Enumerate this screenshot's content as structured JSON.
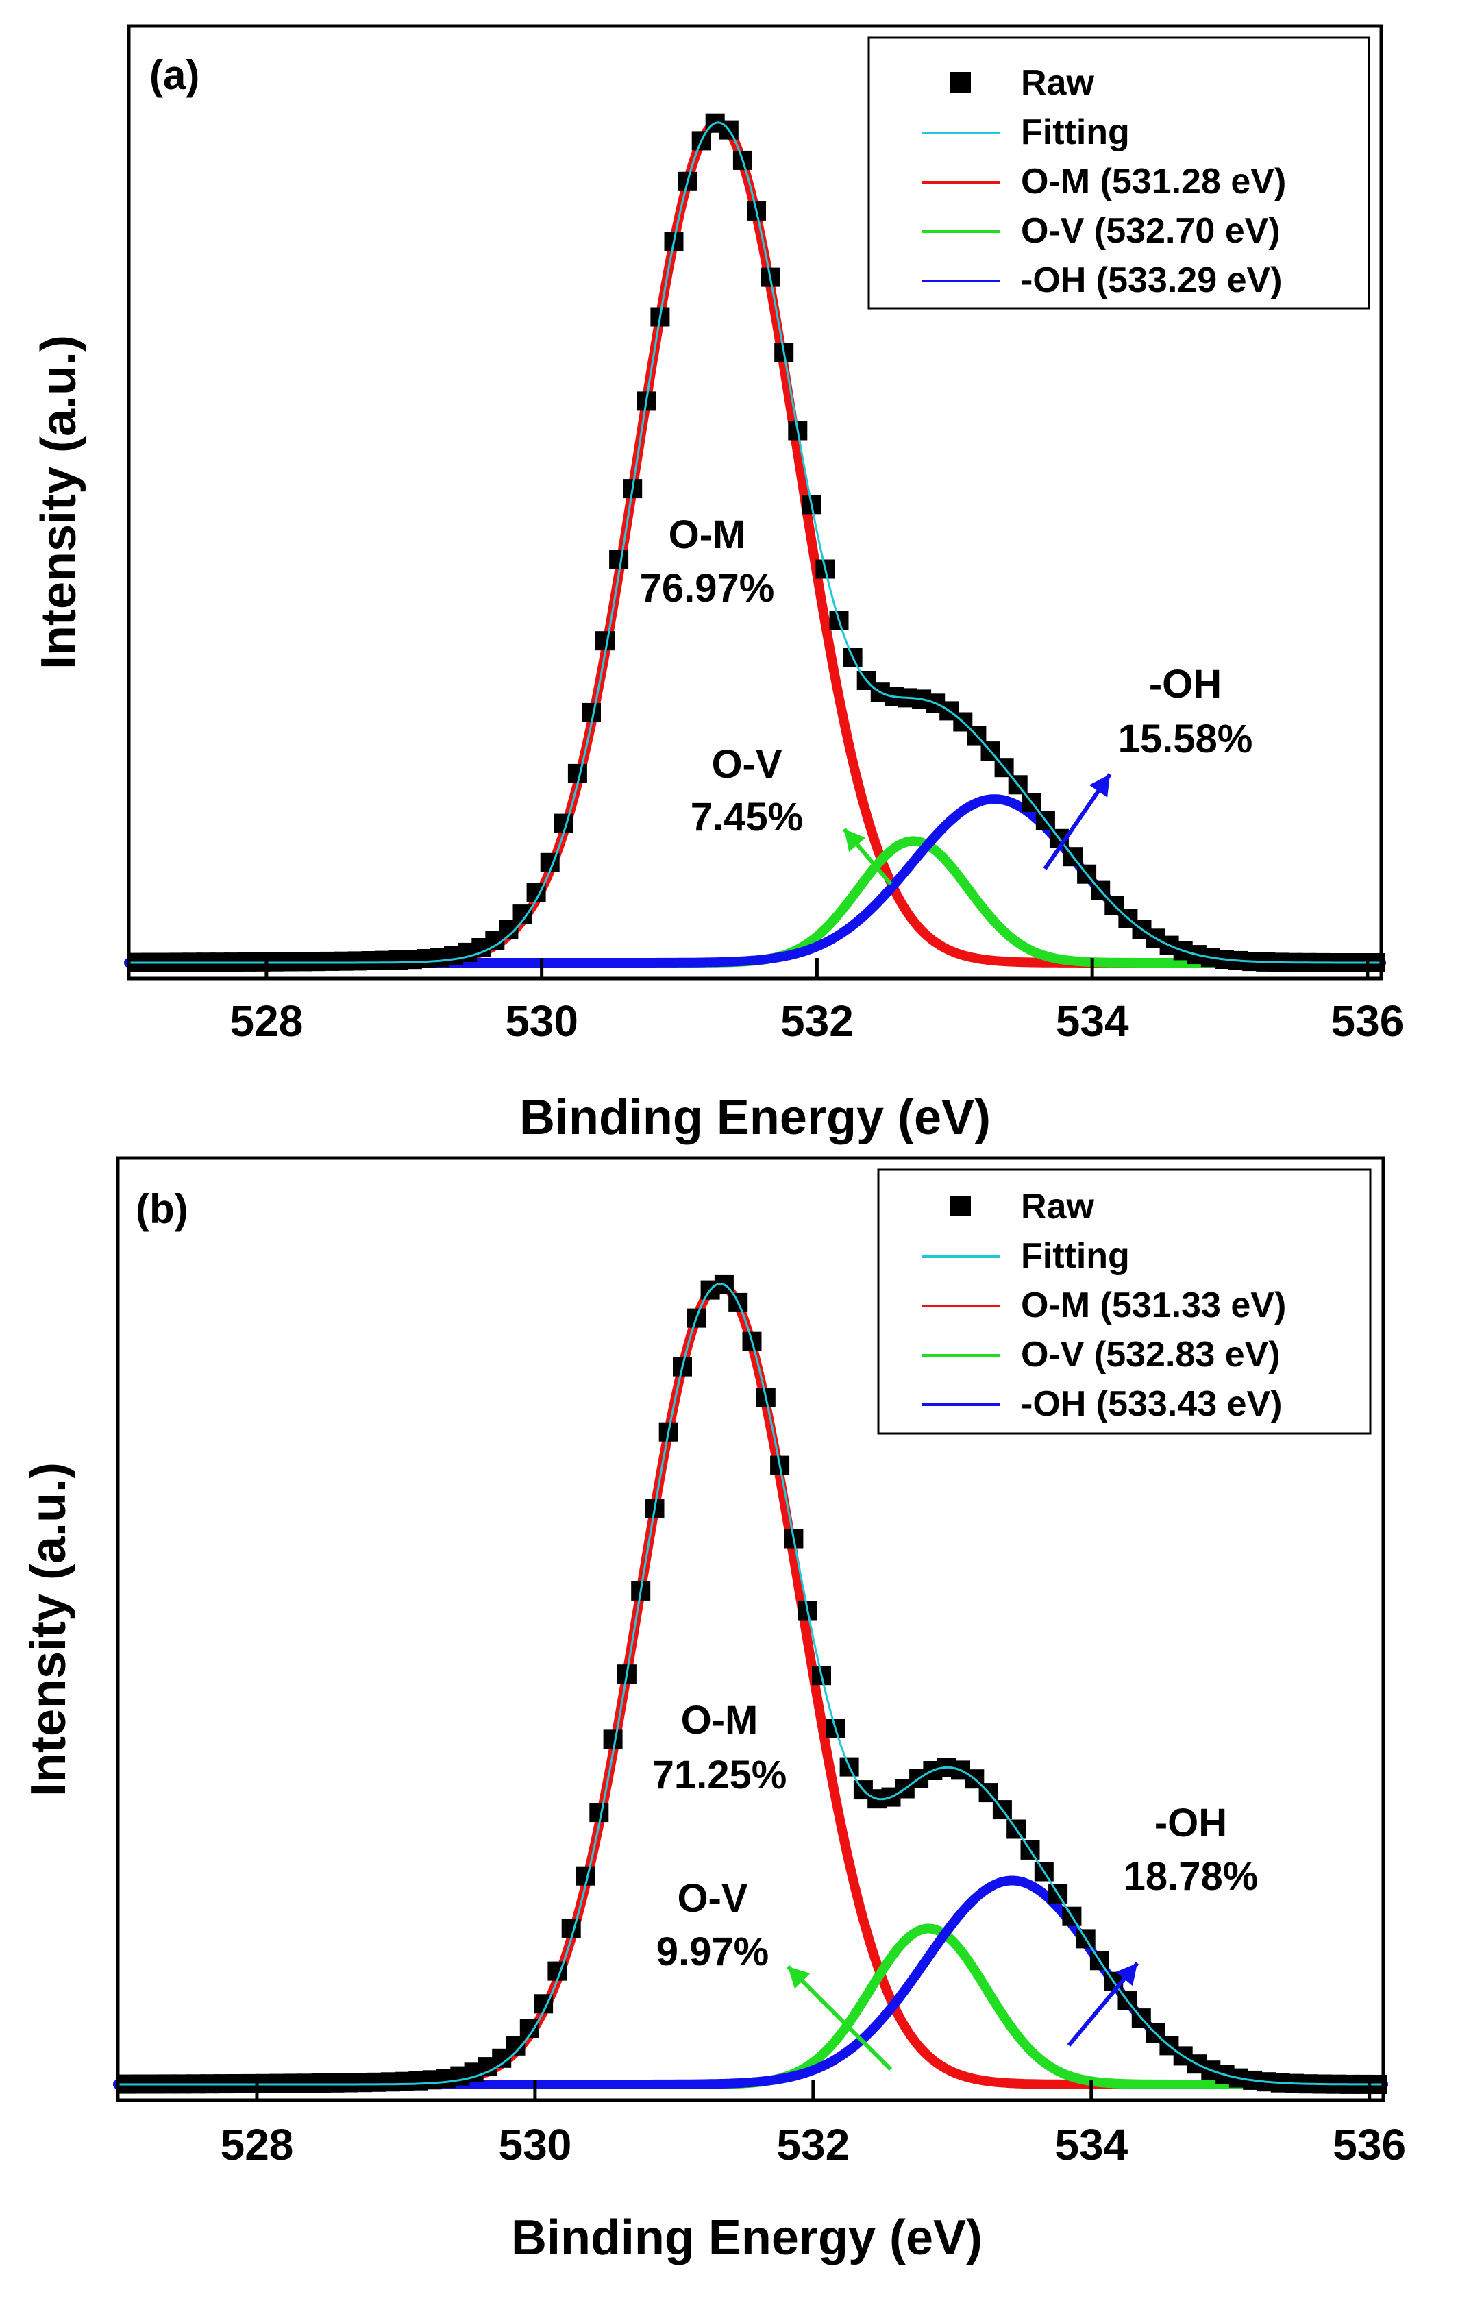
{
  "chart_data": [
    {
      "type": "line",
      "panel_label": "(a)",
      "xlabel": "Binding Energy (eV)",
      "ylabel": "Intensity (a.u.)",
      "xlim": [
        527.0,
        536.1
      ],
      "ylim": [
        0,
        1.07
      ],
      "xticks": [
        "528",
        "530",
        "532",
        "534",
        "536"
      ],
      "grid": false,
      "legend_position": "top-right",
      "legend": [
        {
          "label": "Raw",
          "style": "square-marker",
          "color": "#000000"
        },
        {
          "label": "Fitting",
          "style": "line",
          "color": "#22c8d8"
        },
        {
          "label": "O-M (531.28 eV)",
          "style": "line",
          "color": "#ee1111"
        },
        {
          "label": "O-V (532.70 eV)",
          "style": "line",
          "color": "#22dd22"
        },
        {
          "label": "-OH (533.29 eV)",
          "style": "line",
          "color": "#1111ee"
        }
      ],
      "series": [
        {
          "name": "O-M (531.28 eV)",
          "center": 531.28,
          "sigma": 0.58,
          "amplitude": 1.0,
          "color": "#ee1111"
        },
        {
          "name": "O-V (532.70 eV)",
          "center": 532.7,
          "sigma": 0.4,
          "amplitude": 0.145,
          "color": "#22dd22"
        },
        {
          "name": "-OH (533.29 eV)",
          "center": 533.29,
          "sigma": 0.6,
          "amplitude": 0.195,
          "color": "#1111ee"
        }
      ],
      "annotations": [
        {
          "line1": "O-M",
          "line2": "76.97%",
          "color": "#000000"
        },
        {
          "line1": "O-V",
          "line2": "7.45%",
          "color": "#000000"
        },
        {
          "line1": "-OH",
          "line2": "15.58%",
          "color": "#000000"
        }
      ]
    },
    {
      "type": "line",
      "panel_label": "(b)",
      "xlabel": "Binding Energy (eV)",
      "ylabel": "Intensity (a.u.)",
      "xlim": [
        527.0,
        536.1
      ],
      "ylim": [
        0,
        1.07
      ],
      "xticks": [
        "528",
        "530",
        "532",
        "534",
        "536"
      ],
      "grid": false,
      "legend_position": "top-right",
      "legend": [
        {
          "label": "Raw",
          "style": "square-marker",
          "color": "#000000"
        },
        {
          "label": "Fitting",
          "style": "line",
          "color": "#22c8d8"
        },
        {
          "label": "O-M (531.33 eV)",
          "style": "line",
          "color": "#ee1111"
        },
        {
          "label": "O-V (532.83 eV)",
          "style": "line",
          "color": "#22dd22"
        },
        {
          "label": "-OH (533.43 eV)",
          "style": "line",
          "color": "#1111ee"
        }
      ],
      "series": [
        {
          "name": "O-M (531.33 eV)",
          "center": 531.33,
          "sigma": 0.58,
          "amplitude": 1.0,
          "color": "#ee1111"
        },
        {
          "name": "O-V (532.83 eV)",
          "center": 532.83,
          "sigma": 0.42,
          "amplitude": 0.195,
          "color": "#22dd22"
        },
        {
          "name": "-OH (533.43 eV)",
          "center": 533.43,
          "sigma": 0.62,
          "amplitude": 0.255,
          "color": "#1111ee"
        }
      ],
      "annotations": [
        {
          "line1": "O-M",
          "line2": "71.25%",
          "color": "#000000"
        },
        {
          "line1": "O-V",
          "line2": "9.97%",
          "color": "#000000"
        },
        {
          "line1": "-OH",
          "line2": "18.78%",
          "color": "#000000"
        }
      ]
    }
  ]
}
